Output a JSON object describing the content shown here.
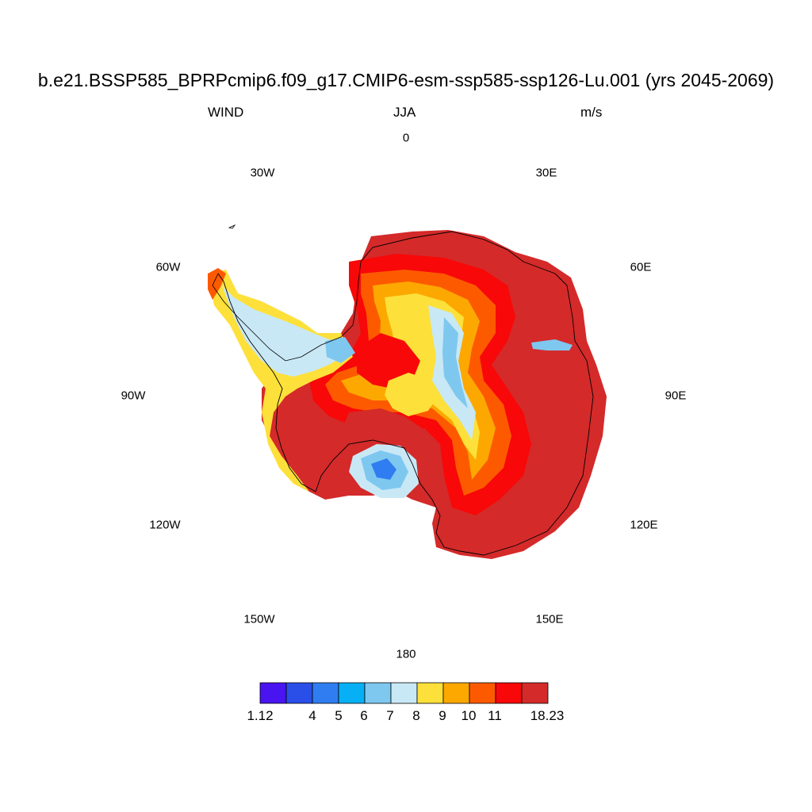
{
  "title": "b.e21.BSSP585_BPRPcmip6.f09_g17.CMIP6-esm-ssp585-ssp126-Lu.001 (yrs 2045-2069)",
  "variable": "WIND",
  "season": "JJA",
  "units": "m/s",
  "longitude_labels": {
    "lon_0": "0",
    "lon_30e": "30E",
    "lon_60e": "60E",
    "lon_90e": "90E",
    "lon_120e": "120E",
    "lon_150e": "150E",
    "lon_180": "180",
    "lon_150w": "150W",
    "lon_120w": "120W",
    "lon_90w": "90W",
    "lon_60w": "60W",
    "lon_30w": "30W"
  },
  "colorbar": {
    "colors": [
      "#4a14f0",
      "#2a4ee8",
      "#2f7df0",
      "#07b0f5",
      "#7ec8f0",
      "#c9e8f5",
      "#fde03a",
      "#fca800",
      "#fd5a00",
      "#f80808",
      "#d42a2a"
    ],
    "labels": {
      "min": "1.12",
      "l4": "4",
      "l5": "5",
      "l6": "6",
      "l7": "7",
      "l8": "8",
      "l9": "9",
      "l10": "10",
      "l11": "11",
      "max": "18.23"
    }
  }
}
